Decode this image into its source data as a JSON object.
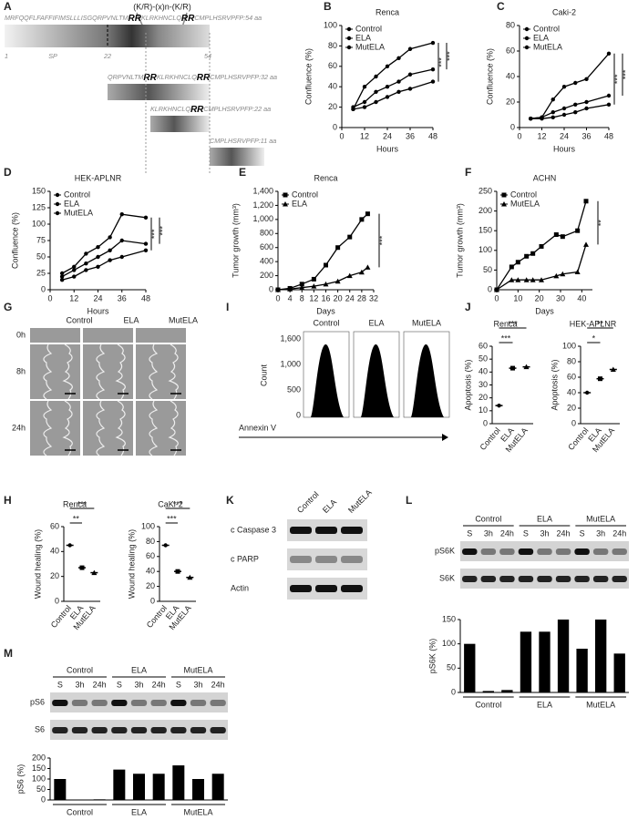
{
  "sequence_panel": {
    "panel": "A",
    "motif": "(K/R)-(x)n-(K/R)",
    "rows": [
      {
        "parts": [
          "MRFQQFLFAFFIFIMSLLLISGQRPVNLTM",
          "RR",
          "KLRKHNCLQ",
          "RR",
          "CMPLHSRVPFP"
        ],
        "length": ":54 aa"
      },
      {
        "parts": [
          "QRPVNLTM",
          "RR",
          "KLRKHNCLQ",
          "RR",
          "CMPLHSRVPFP"
        ],
        "length": ":32 aa"
      },
      {
        "parts": [
          "KLRKHNCLQ",
          "RR",
          "CMPLHSRVPFP"
        ],
        "length": ":22 aa"
      },
      {
        "parts": [
          "CMPLHSRVPFP"
        ],
        "length": ":11 aa"
      }
    ],
    "labels": [
      "1",
      "SP",
      "22",
      "54"
    ]
  },
  "wound_images": {
    "panel": "G",
    "columns": [
      "Control",
      "ELA",
      "MutELA"
    ],
    "rows": [
      "0h",
      "8h",
      "24h"
    ]
  },
  "flow_panel": {
    "panel": "I",
    "ylabel": "Count",
    "xlabel": "Annexin V",
    "columns": [
      "Control",
      "ELA",
      "MutELA"
    ],
    "yticks": [
      "1,600",
      "1,000",
      "500",
      "0"
    ]
  },
  "blot_panel": {
    "panel": "K",
    "columns": [
      "Control",
      "ELA",
      "MutELA"
    ],
    "rows": [
      "c Caspase 3",
      "c PARP",
      "Actin"
    ]
  },
  "chart_data": [
    {
      "type": "line",
      "panel": "B",
      "title": "Renca",
      "xlabel": "Hours",
      "ylabel": "Confluence (%)",
      "x": [
        6,
        12,
        18,
        24,
        30,
        36,
        48
      ],
      "xlim": [
        0,
        48
      ],
      "xticks": [
        0,
        12,
        24,
        36,
        48
      ],
      "ylim": [
        0,
        100
      ],
      "yticks": [
        0,
        20,
        40,
        60,
        80,
        100
      ],
      "series": [
        {
          "name": "Control",
          "marker": "circle",
          "color": "#000",
          "values": [
            18,
            40,
            50,
            60,
            68,
            77,
            83
          ]
        },
        {
          "name": "ELA",
          "marker": "circle",
          "color": "#000",
          "values": [
            20,
            25,
            35,
            40,
            45,
            52,
            57
          ]
        },
        {
          "name": "MutELA",
          "marker": "circle",
          "color": "#000",
          "values": [
            18,
            20,
            25,
            30,
            35,
            38,
            45
          ]
        }
      ],
      "annotations": [
        "***",
        "***"
      ]
    },
    {
      "type": "line",
      "panel": "C",
      "title": "Caki-2",
      "xlabel": "Hours",
      "ylabel": "Confluence (%)",
      "x": [
        6,
        12,
        18,
        24,
        30,
        36,
        48
      ],
      "xlim": [
        0,
        48
      ],
      "xticks": [
        0,
        12,
        24,
        36,
        48
      ],
      "ylim": [
        0,
        80
      ],
      "yticks": [
        0,
        20,
        40,
        60,
        80
      ],
      "series": [
        {
          "name": "Control",
          "marker": "circle",
          "color": "#000",
          "values": [
            7,
            8,
            22,
            32,
            35,
            38,
            58
          ]
        },
        {
          "name": "ELA",
          "marker": "circle",
          "color": "#000",
          "values": [
            7,
            8,
            12,
            15,
            18,
            20,
            25
          ]
        },
        {
          "name": "MutELA",
          "marker": "circle",
          "color": "#000",
          "values": [
            7,
            7,
            8,
            10,
            12,
            15,
            18
          ]
        }
      ],
      "annotations": [
        "***",
        "***"
      ]
    },
    {
      "type": "line",
      "panel": "D",
      "title": "HEK-APLNR",
      "xlabel": "Hours",
      "ylabel": "Confluence (%)",
      "x": [
        6,
        12,
        18,
        24,
        30,
        36,
        48
      ],
      "xlim": [
        0,
        48
      ],
      "xticks": [
        0,
        12,
        24,
        36,
        48
      ],
      "ylim": [
        0,
        150
      ],
      "yticks": [
        0,
        25,
        50,
        75,
        100,
        125,
        150
      ],
      "series": [
        {
          "name": "Control",
          "marker": "circle",
          "color": "#000",
          "values": [
            25,
            35,
            55,
            65,
            80,
            115,
            110
          ]
        },
        {
          "name": "ELA",
          "marker": "circle",
          "color": "#000",
          "values": [
            20,
            30,
            40,
            50,
            60,
            75,
            70
          ]
        },
        {
          "name": "MutELA",
          "marker": "circle",
          "color": "#000",
          "values": [
            15,
            20,
            30,
            35,
            45,
            50,
            60
          ]
        }
      ],
      "annotations": [
        "***",
        "***"
      ]
    },
    {
      "type": "line",
      "panel": "E",
      "title": "Renca",
      "xlabel": "Days",
      "ylabel": "Tumor growth (mm³)",
      "x": [
        0,
        4,
        8,
        12,
        16,
        20,
        24,
        28,
        30
      ],
      "xlim": [
        0,
        32
      ],
      "xticks": [
        0,
        4,
        8,
        12,
        16,
        20,
        24,
        28,
        32
      ],
      "ylim": [
        0,
        1400
      ],
      "yticks": [
        0,
        200,
        400,
        600,
        800,
        {
          "value": 1000,
          "label": "1,000"
        },
        {
          "value": 1200,
          "label": "1,200"
        },
        {
          "value": 1400,
          "label": "1,400"
        }
      ],
      "series": [
        {
          "name": "Control",
          "marker": "square",
          "color": "#000",
          "values": [
            0,
            20,
            80,
            150,
            350,
            600,
            750,
            1000,
            1080
          ]
        },
        {
          "name": "ELA",
          "marker": "triangle",
          "color": "#000",
          "values": [
            0,
            10,
            30,
            50,
            80,
            120,
            200,
            250,
            320
          ]
        }
      ],
      "annotations": [
        "***"
      ]
    },
    {
      "type": "line",
      "panel": "F",
      "title": "ACHN",
      "xlabel": "Days",
      "ylabel": "Tumor growth (mm³)",
      "x": [
        0,
        7,
        10,
        14,
        17,
        21,
        28,
        31,
        38,
        42
      ],
      "xlim": [
        0,
        45
      ],
      "xticks": [
        0,
        10,
        20,
        30,
        40
      ],
      "ylim": [
        0,
        250
      ],
      "yticks": [
        0,
        50,
        100,
        150,
        200,
        250
      ],
      "series": [
        {
          "name": "Control",
          "marker": "square",
          "color": "#000",
          "values": [
            0,
            58,
            70,
            85,
            92,
            110,
            140,
            135,
            150,
            225
          ]
        },
        {
          "name": "MutELA",
          "marker": "triangle",
          "color": "#000",
          "values": [
            0,
            25,
            25,
            25,
            25,
            25,
            35,
            40,
            45,
            115
          ]
        }
      ],
      "annotations": [
        "**"
      ]
    },
    {
      "type": "dot",
      "panel": "J",
      "title": "Renca",
      "ylabel": "Apoptosis (%)",
      "categories": [
        "Control",
        "ELA",
        "MutELA"
      ],
      "values": [
        14,
        43,
        44
      ],
      "ylim": [
        0,
        60
      ],
      "yticks": [
        0,
        10,
        20,
        30,
        40,
        50,
        60
      ],
      "annotations": [
        "***",
        "***"
      ]
    },
    {
      "type": "dot",
      "title": "HEK-APLNR",
      "ylabel": "Apoptosis (%)",
      "categories": [
        "Control",
        "ELA",
        "MutELA"
      ],
      "values": [
        40,
        58,
        70
      ],
      "ylim": [
        0,
        100
      ],
      "yticks": [
        0,
        20,
        40,
        60,
        80,
        100
      ],
      "annotations": [
        "*",
        "**"
      ]
    },
    {
      "type": "dot",
      "panel": "H",
      "title": "Renca",
      "ylabel": "Wound  healing  (%)",
      "categories": [
        "Control",
        "ELA",
        "MutELA"
      ],
      "values": [
        45,
        27,
        23
      ],
      "ylim": [
        0,
        60
      ],
      "yticks": [
        0,
        20,
        40,
        60
      ],
      "annotations": [
        "**",
        "***"
      ]
    },
    {
      "type": "dot",
      "title": "CaKi-2",
      "ylabel": "Wound  healing  (%)",
      "categories": [
        "Control",
        "ELA",
        "MutELA"
      ],
      "values": [
        75,
        40,
        32
      ],
      "ylim": [
        0,
        100
      ],
      "yticks": [
        0,
        20,
        40,
        60,
        80,
        100
      ],
      "annotations": [
        "***",
        "***"
      ]
    },
    {
      "type": "bar",
      "panel": "L",
      "ylabel": "pS6K (%)",
      "categories": [
        "S",
        "3h",
        "24h",
        "S",
        "3h",
        "24h",
        "S",
        "3h",
        "24h"
      ],
      "groups": [
        "Control",
        "ELA",
        "MutELA"
      ],
      "blot_rows": [
        "pS6K",
        "S6K"
      ],
      "values": [
        100,
        3,
        5,
        125,
        125,
        150,
        90,
        150,
        80
      ],
      "color": "#000",
      "ylim": [
        0,
        150
      ],
      "yticks": [
        0,
        50,
        100,
        150
      ]
    },
    {
      "type": "bar",
      "panel": "M",
      "ylabel": "pS6 (%)",
      "categories": [
        "S",
        "3h",
        "24h",
        "S",
        "3h",
        "24h",
        "S",
        "3h",
        "24h"
      ],
      "groups": [
        "Control",
        "ELA",
        "MutELA"
      ],
      "blot_rows": [
        "pS6",
        "S6"
      ],
      "values": [
        100,
        2,
        3,
        145,
        125,
        125,
        165,
        100,
        125
      ],
      "color": "#000",
      "ylim": [
        0,
        200
      ],
      "yticks": [
        0,
        50,
        100,
        150,
        200
      ]
    }
  ]
}
